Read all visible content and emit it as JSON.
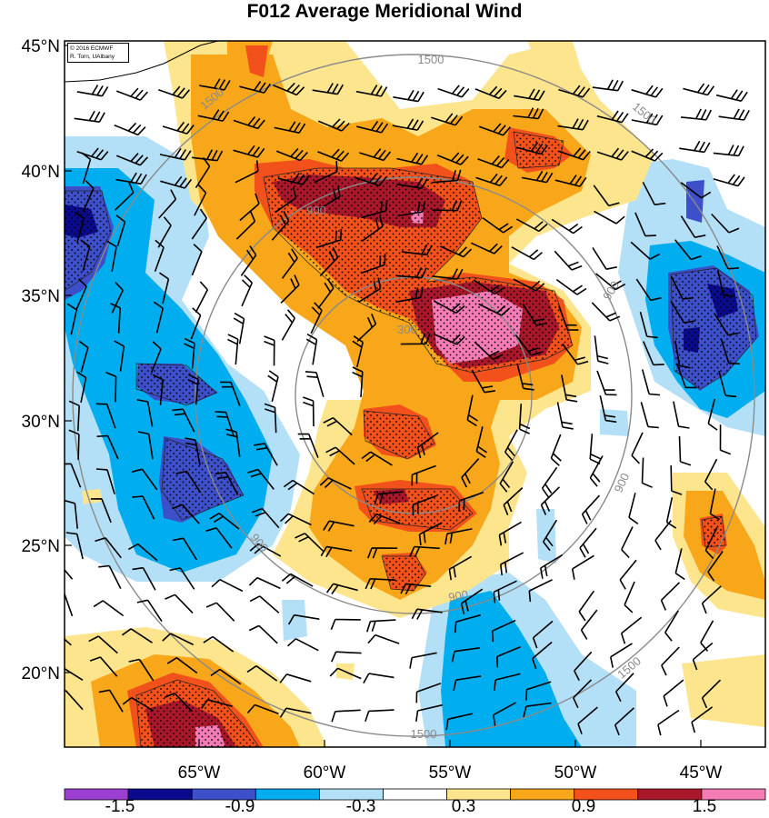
{
  "title": "F012 Average Meridional Wind",
  "credit": {
    "line1": "© 2016 ECMWF",
    "line2": "R. Torn, UAlbany"
  },
  "map": {
    "lat_labels": [
      "45°N",
      "40°N",
      "35°N",
      "30°N",
      "25°N",
      "20°N"
    ],
    "lon_labels": [
      "65°W",
      "60°W",
      "55°W",
      "50°W",
      "45°W"
    ],
    "ring_labels": [
      "300",
      "900",
      "900",
      "900",
      "900",
      "900",
      "1500",
      "1500",
      "1500",
      "1500",
      "1500"
    ]
  },
  "colorbar": {
    "labels": [
      "-1.5",
      "-0.9",
      "-0.3",
      "0.3",
      "0.9",
      "1.5"
    ],
    "colors": [
      "#9a3fd1",
      "#0a0a8c",
      "#3d4fc9",
      "#00aeef",
      "#b3dff7",
      "#ffffff",
      "#fde58e",
      "#f9a71a",
      "#f3511b",
      "#a8182a",
      "#f47bb4"
    ]
  },
  "palette": {
    "dark_blue": "#0a0a8c",
    "blue": "#3d4fc9",
    "cyan": "#00aeef",
    "light_blue": "#b3dff7",
    "light_yellow": "#fde58e",
    "orange": "#f9a71a",
    "red_orange": "#f3511b",
    "dark_red": "#a8182a",
    "pink": "#f47bb4",
    "ring_gray": "#8a8a8a"
  }
}
